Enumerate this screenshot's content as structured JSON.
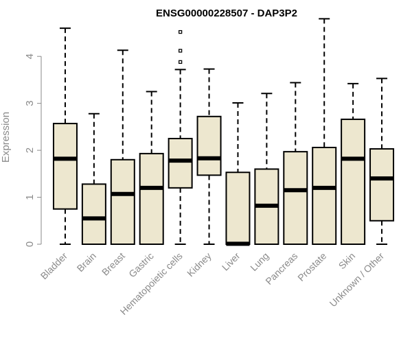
{
  "chart_data": {
    "type": "box",
    "title": "ENSG00000228507 - DAP3P2",
    "xlabel": "",
    "ylabel": "Expression",
    "ylim": [
      0,
      4.85
    ],
    "yticks": [
      0,
      1,
      2,
      3,
      4
    ],
    "grid": false,
    "legend": "none",
    "colors": {
      "box_fill": "#ede7cf",
      "stroke": "#000000",
      "axis_text": "#8a8a8a"
    },
    "categories": [
      "Bladder",
      "Brain",
      "Breast",
      "Gastric",
      "Hematopoietic cells",
      "Kidney",
      "Liver",
      "Lung",
      "Pancreas",
      "Prostate",
      "Skin",
      "Unknown / Other"
    ],
    "boxes": [
      {
        "min": 0,
        "q1": 0.75,
        "median": 1.82,
        "q3": 2.57,
        "max": 4.6,
        "outliers": []
      },
      {
        "min": 0,
        "q1": 0,
        "median": 0.55,
        "q3": 1.28,
        "max": 2.78,
        "outliers": []
      },
      {
        "min": 0,
        "q1": 0,
        "median": 1.07,
        "q3": 1.8,
        "max": 4.13,
        "outliers": []
      },
      {
        "min": 0,
        "q1": 0,
        "median": 1.2,
        "q3": 1.93,
        "max": 3.25,
        "outliers": []
      },
      {
        "min": 0,
        "q1": 1.2,
        "median": 1.78,
        "q3": 2.25,
        "max": 3.72,
        "outliers": [
          3.88,
          4.12,
          4.52
        ]
      },
      {
        "min": 0,
        "q1": 1.47,
        "median": 1.83,
        "q3": 2.72,
        "max": 3.73,
        "outliers": []
      },
      {
        "min": 0,
        "q1": 0,
        "median": 0.01,
        "q3": 1.53,
        "max": 3.01,
        "outliers": []
      },
      {
        "min": 0,
        "q1": 0,
        "median": 0.82,
        "q3": 1.6,
        "max": 3.21,
        "outliers": []
      },
      {
        "min": 0,
        "q1": 0,
        "median": 1.15,
        "q3": 1.97,
        "max": 3.44,
        "outliers": []
      },
      {
        "min": 0,
        "q1": 0,
        "median": 1.2,
        "q3": 2.06,
        "max": 4.8,
        "outliers": []
      },
      {
        "min": 0,
        "q1": 0,
        "median": 1.82,
        "q3": 2.66,
        "max": 3.42,
        "outliers": []
      },
      {
        "min": 0,
        "q1": 0.5,
        "median": 1.4,
        "q3": 2.03,
        "max": 3.53,
        "outliers": []
      }
    ]
  }
}
